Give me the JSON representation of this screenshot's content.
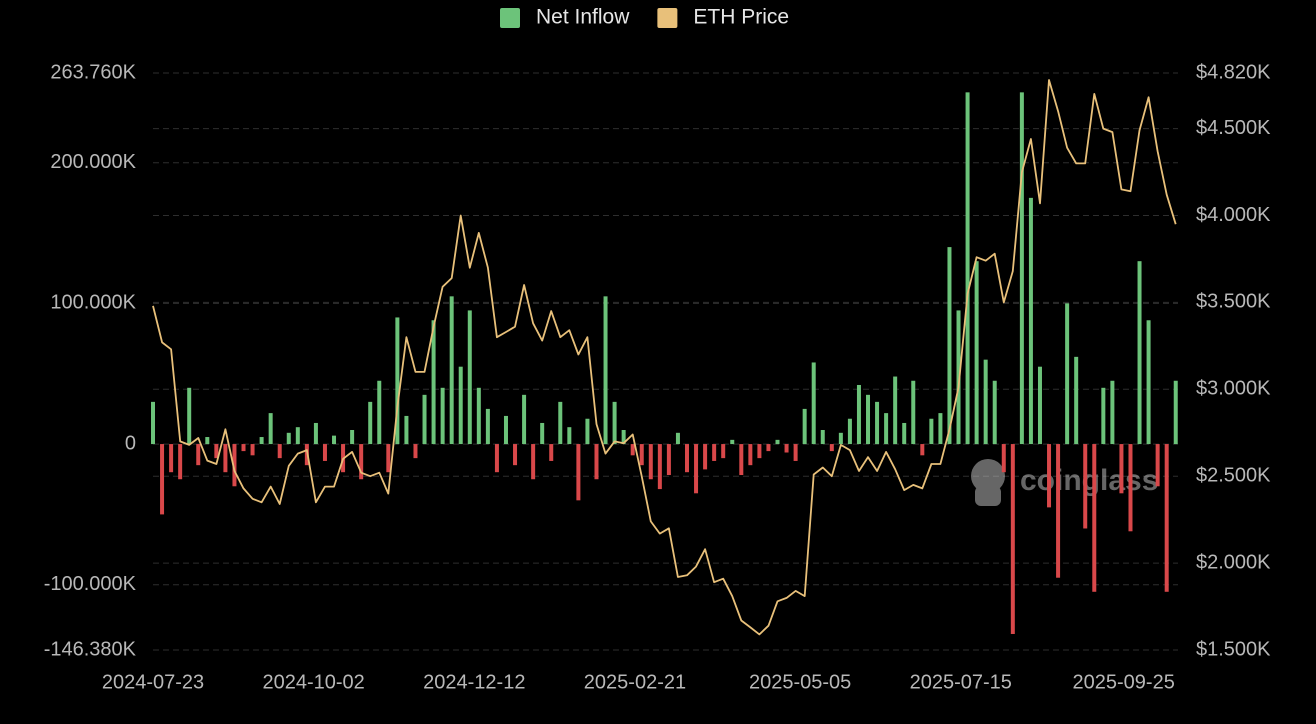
{
  "chart_data": {
    "type": "bar-line",
    "legend": "top",
    "watermark": "coinglass",
    "x": [
      "2024-07-23",
      "2024-07-27",
      "2024-07-31",
      "2024-08-04",
      "2024-08-08",
      "2024-08-12",
      "2024-08-16",
      "2024-08-20",
      "2024-08-24",
      "2024-08-28",
      "2024-09-01",
      "2024-09-05",
      "2024-09-09",
      "2024-09-13",
      "2024-09-17",
      "2024-09-21",
      "2024-09-25",
      "2024-09-29",
      "2024-10-03",
      "2024-10-07",
      "2024-10-11",
      "2024-10-15",
      "2024-10-19",
      "2024-10-23",
      "2024-10-27",
      "2024-10-31",
      "2024-11-04",
      "2024-11-08",
      "2024-11-12",
      "2024-11-16",
      "2024-11-20",
      "2024-11-24",
      "2024-11-28",
      "2024-12-02",
      "2024-12-06",
      "2024-12-10",
      "2024-12-14",
      "2024-12-18",
      "2024-12-22",
      "2024-12-26",
      "2024-12-30",
      "2025-01-03",
      "2025-01-07",
      "2025-01-11",
      "2025-01-15",
      "2025-01-19",
      "2025-01-23",
      "2025-01-27",
      "2025-01-31",
      "2025-02-04",
      "2025-02-08",
      "2025-02-12",
      "2025-02-16",
      "2025-02-20",
      "2025-02-24",
      "2025-02-28",
      "2025-03-04",
      "2025-03-08",
      "2025-03-12",
      "2025-03-16",
      "2025-03-20",
      "2025-03-24",
      "2025-03-28",
      "2025-04-01",
      "2025-04-05",
      "2025-04-09",
      "2025-04-13",
      "2025-04-17",
      "2025-04-21",
      "2025-04-25",
      "2025-04-29",
      "2025-05-03",
      "2025-05-07",
      "2025-05-11",
      "2025-05-15",
      "2025-05-19",
      "2025-05-23",
      "2025-05-27",
      "2025-05-31",
      "2025-06-04",
      "2025-06-08",
      "2025-06-12",
      "2025-06-16",
      "2025-06-20",
      "2025-06-24",
      "2025-06-28",
      "2025-07-02",
      "2025-07-06",
      "2025-07-10",
      "2025-07-14",
      "2025-07-18",
      "2025-07-22",
      "2025-07-26",
      "2025-07-30",
      "2025-08-03",
      "2025-08-07",
      "2025-08-11",
      "2025-08-15",
      "2025-08-19",
      "2025-08-23",
      "2025-08-27",
      "2025-08-31",
      "2025-09-04",
      "2025-09-08",
      "2025-09-12",
      "2025-09-16",
      "2025-09-20",
      "2025-09-24",
      "2025-09-28",
      "2025-10-02",
      "2025-10-06",
      "2025-10-10",
      "2025-10-14",
      "2025-10-18"
    ],
    "xlim": [
      "2024-07-23",
      "2025-10-19"
    ],
    "xticks": [
      "2024-07-23",
      "2024-10-02",
      "2024-12-12",
      "2025-02-21",
      "2025-05-05",
      "2025-07-15",
      "2025-09-25"
    ],
    "series": [
      {
        "name": "Net Inflow",
        "color": "#6cc37a",
        "negative_color": "#d9484a",
        "axis": "y",
        "values": [
          30000,
          -50000,
          -20000,
          -25000,
          40000,
          -15000,
          5000,
          -10000,
          -20000,
          -30000,
          -5000,
          -8000,
          5000,
          22000,
          -10000,
          8000,
          12000,
          -15000,
          15000,
          -12000,
          6000,
          -20000,
          10000,
          -25000,
          30000,
          45000,
          -20000,
          90000,
          20000,
          -10000,
          35000,
          88000,
          40000,
          105000,
          55000,
          95000,
          40000,
          25000,
          -20000,
          20000,
          -15000,
          35000,
          -25000,
          15000,
          -12000,
          30000,
          12000,
          -40000,
          18000,
          -25000,
          105000,
          30000,
          10000,
          -8000,
          -15000,
          -25000,
          -32000,
          -22000,
          8000,
          -20000,
          -35000,
          -18000,
          -12000,
          -10000,
          3000,
          -22000,
          -15000,
          -10000,
          -5000,
          3000,
          -6000,
          -12000,
          25000,
          58000,
          10000,
          -5000,
          8000,
          18000,
          42000,
          35000,
          30000,
          22000,
          48000,
          15000,
          45000,
          -8000,
          18000,
          22000,
          140000,
          95000,
          250000,
          130000,
          60000,
          45000,
          -20000,
          -135000,
          250000,
          175000,
          55000,
          -45000,
          -95000,
          100000,
          62000,
          -60000,
          -105000,
          40000,
          45000,
          -35000,
          -62000,
          130000,
          88000,
          -30000,
          -105000,
          45000
        ]
      },
      {
        "name": "ETH Price",
        "color": "#e8c07a",
        "axis": "y2",
        "values": [
          3480,
          3270,
          3230,
          2700,
          2680,
          2720,
          2590,
          2570,
          2770,
          2530,
          2430,
          2370,
          2350,
          2440,
          2340,
          2560,
          2630,
          2650,
          2350,
          2440,
          2440,
          2600,
          2640,
          2520,
          2500,
          2520,
          2400,
          2900,
          3300,
          3100,
          3100,
          3360,
          3590,
          3640,
          4000,
          3700,
          3900,
          3700,
          3300,
          3330,
          3360,
          3600,
          3380,
          3280,
          3450,
          3300,
          3340,
          3200,
          3300,
          2800,
          2630,
          2700,
          2690,
          2740,
          2500,
          2240,
          2170,
          2200,
          1920,
          1930,
          1980,
          2080,
          1890,
          1910,
          1810,
          1670,
          1630,
          1590,
          1640,
          1780,
          1800,
          1840,
          1810,
          2510,
          2550,
          2500,
          2680,
          2650,
          2530,
          2610,
          2530,
          2640,
          2540,
          2420,
          2450,
          2430,
          2570,
          2570,
          2770,
          3010,
          3550,
          3760,
          3740,
          3780,
          3500,
          3680,
          4250,
          4440,
          4070,
          4780,
          4600,
          4390,
          4300,
          4300,
          4700,
          4500,
          4480,
          4150,
          4140,
          4490,
          4680,
          4370,
          4120,
          3950
        ]
      }
    ],
    "ylim": [
      -146380,
      263760
    ],
    "yticks": [
      {
        "value": -146380,
        "label": "-146.380K"
      },
      {
        "value": -100000,
        "label": "-100.000K"
      },
      0,
      {
        "value": 100000,
        "label": "100.000K"
      },
      {
        "value": 200000,
        "label": "200.000K"
      },
      {
        "value": 263760,
        "label": "263.760K"
      }
    ],
    "y2lim": [
      1500,
      4820
    ],
    "y2ticks": [
      {
        "value": 1500,
        "label": "$1.500K"
      },
      {
        "value": 2000,
        "label": "$2.000K"
      },
      {
        "value": 2500,
        "label": "$2.500K"
      },
      {
        "value": 3000,
        "label": "$3.000K"
      },
      {
        "value": 3500,
        "label": "$3.500K"
      },
      {
        "value": 4000,
        "label": "$4.000K"
      },
      {
        "value": 4500,
        "label": "$4.500K"
      },
      {
        "value": 4820,
        "label": "$4.820K"
      }
    ],
    "grid": true
  }
}
